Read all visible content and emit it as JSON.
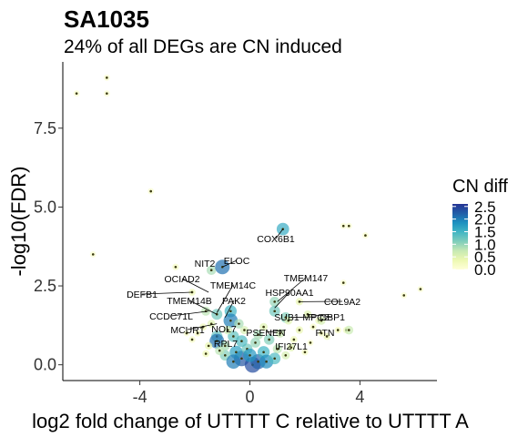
{
  "chart_data": {
    "type": "scatter",
    "title": "SA1035",
    "subtitle": "24% of all DEGs are CN induced",
    "xlabel": "log2 fold change of UTTTT C relative to UTTTT A",
    "ylabel": "-log10(FDR)",
    "xlim": [
      -6.8,
      6.8
    ],
    "ylim": [
      -0.5,
      9.6
    ],
    "xticks": [
      -4,
      0,
      4
    ],
    "xtick_labels": [
      "-4",
      "0",
      "4"
    ],
    "yticks": [
      0,
      2.5,
      5,
      7.5
    ],
    "ytick_labels": [
      "0.0",
      "2.5",
      "5.0",
      "7.5"
    ],
    "grid": false,
    "legend": {
      "title": "CN diff",
      "placement": "right",
      "range": [
        0,
        2.6
      ],
      "ticks": [
        0,
        0.5,
        1,
        1.5,
        2,
        2.5
      ],
      "tick_labels": [
        "0.0",
        "0.5",
        "1.0",
        "1.5",
        "2.0",
        "2.5"
      ],
      "colors": [
        "#ffffd9",
        "#edf8b1",
        "#c7e9b4",
        "#7fcdbb",
        "#41b6c4",
        "#1d91c0",
        "#225ea8",
        "#253494"
      ]
    },
    "points": [
      {
        "x": -6.3,
        "y": 8.6,
        "cn": 0.1
      },
      {
        "x": -5.2,
        "y": 9.1,
        "cn": 0.1
      },
      {
        "x": -5.2,
        "y": 8.6,
        "cn": 0.1
      },
      {
        "x": -3.6,
        "y": 5.5,
        "cn": 0.1
      },
      {
        "x": -5.7,
        "y": 3.5,
        "cn": 0.1
      },
      {
        "x": 3.4,
        "y": 4.4,
        "cn": 0.1
      },
      {
        "x": 3.6,
        "y": 4.4,
        "cn": 0.1
      },
      {
        "x": 4.2,
        "y": 4.1,
        "cn": 0.1
      },
      {
        "x": 3.4,
        "y": 2.6,
        "cn": 0.1
      },
      {
        "x": 5.6,
        "y": 2.2,
        "cn": 0.1
      },
      {
        "x": 6.2,
        "y": 2.4,
        "cn": 0.1
      },
      {
        "x": 1.2,
        "y": 4.3,
        "cn": 1.6
      },
      {
        "x": -1.4,
        "y": 3.0,
        "cn": 0.9
      },
      {
        "x": -1.0,
        "y": 3.1,
        "cn": 2.1
      },
      {
        "x": -2.7,
        "y": 3.1,
        "cn": 0.2
      },
      {
        "x": -2.1,
        "y": 2.3,
        "cn": 0.3
      },
      {
        "x": -1.6,
        "y": 1.7,
        "cn": 0.8
      },
      {
        "x": -1.2,
        "y": 1.6,
        "cn": 1.2
      },
      {
        "x": -0.7,
        "y": 1.7,
        "cn": 1.5
      },
      {
        "x": -0.7,
        "y": 1.4,
        "cn": 2.0
      },
      {
        "x": -1.2,
        "y": 0.9,
        "cn": 1.3
      },
      {
        "x": -1.2,
        "y": 0.75,
        "cn": 2.1
      },
      {
        "x": -2.1,
        "y": 0.8,
        "cn": 0.2
      },
      {
        "x": -1.5,
        "y": 0.6,
        "cn": 0.4
      },
      {
        "x": -0.9,
        "y": 0.6,
        "cn": 0.9
      },
      {
        "x": 0.9,
        "y": 2.0,
        "cn": 1.0
      },
      {
        "x": 0.9,
        "y": 1.7,
        "cn": 1.2
      },
      {
        "x": 1.3,
        "y": 1.5,
        "cn": 1.1
      },
      {
        "x": 1.4,
        "y": 1.4,
        "cn": 0.5
      },
      {
        "x": 1.8,
        "y": 2.0,
        "cn": 0.4
      },
      {
        "x": 2.1,
        "y": 1.6,
        "cn": 0.5
      },
      {
        "x": 2.5,
        "y": 1.4,
        "cn": 0.3
      },
      {
        "x": 2.6,
        "y": 1.4,
        "cn": 0.6
      },
      {
        "x": 2.6,
        "y": 1.0,
        "cn": 0.2
      },
      {
        "x": 2.8,
        "y": 0.9,
        "cn": 0.3
      },
      {
        "x": 2.2,
        "y": 0.7,
        "cn": 0.1
      },
      {
        "x": 3.2,
        "y": 1.1,
        "cn": 0.2
      },
      {
        "x": 3.2,
        "y": 1.1,
        "cn": 0.1
      },
      {
        "x": 3.5,
        "y": 1.1,
        "cn": 0.2
      },
      {
        "x": 3.6,
        "y": 1.1,
        "cn": 0.7
      },
      {
        "x": -0.3,
        "y": 0.2,
        "cn": 2.3
      },
      {
        "x": 0.1,
        "y": 0.0,
        "cn": 2.4
      },
      {
        "x": 0.3,
        "y": 0.1,
        "cn": 2.2
      },
      {
        "x": -0.5,
        "y": 0.4,
        "cn": 1.7
      },
      {
        "x": 0.5,
        "y": 0.4,
        "cn": 1.5
      },
      {
        "x": -0.1,
        "y": 0.5,
        "cn": 1.2
      },
      {
        "x": 0.2,
        "y": 0.7,
        "cn": 1.0
      },
      {
        "x": -0.6,
        "y": 0.9,
        "cn": 1.3
      },
      {
        "x": 0.7,
        "y": 0.8,
        "cn": 1.1
      },
      {
        "x": 1.0,
        "y": 0.5,
        "cn": 0.8
      },
      {
        "x": -0.9,
        "y": 0.3,
        "cn": 1.1
      },
      {
        "x": 1.3,
        "y": 0.3,
        "cn": 0.6
      },
      {
        "x": -0.2,
        "y": 1.1,
        "cn": 0.6
      },
      {
        "x": 0.5,
        "y": 1.2,
        "cn": 0.5
      },
      {
        "x": -0.4,
        "y": 1.3,
        "cn": 0.9
      },
      {
        "x": 1.1,
        "y": 1.0,
        "cn": 0.7
      },
      {
        "x": 1.6,
        "y": 0.8,
        "cn": 0.3
      },
      {
        "x": 1.8,
        "y": 1.1,
        "cn": 0.4
      },
      {
        "x": -1.7,
        "y": 1.2,
        "cn": 0.3
      },
      {
        "x": -1.9,
        "y": 1.0,
        "cn": 0.2
      },
      {
        "x": -1.4,
        "y": 1.3,
        "cn": 0.5
      },
      {
        "x": -0.8,
        "y": 1.1,
        "cn": 0.7
      },
      {
        "x": 0.0,
        "y": 0.3,
        "cn": 1.8
      },
      {
        "x": 0.6,
        "y": 0.1,
        "cn": 1.9
      },
      {
        "x": -0.6,
        "y": 0.1,
        "cn": 2.0
      },
      {
        "x": 0.9,
        "y": 0.2,
        "cn": 1.4
      },
      {
        "x": -1.1,
        "y": 0.45,
        "cn": 0.8
      },
      {
        "x": 1.5,
        "y": 0.55,
        "cn": 0.5
      },
      {
        "x": 2.0,
        "y": 0.4,
        "cn": 0.2
      },
      {
        "x": -1.6,
        "y": 0.35,
        "cn": 0.3
      },
      {
        "x": 0.3,
        "y": 0.95,
        "cn": 0.9
      },
      {
        "x": -0.3,
        "y": 0.75,
        "cn": 1.4
      },
      {
        "x": 2.3,
        "y": 1.2,
        "cn": 0.2
      },
      {
        "x": -2.3,
        "y": 1.0,
        "cn": 0.1
      }
    ],
    "annotations": [
      {
        "label": "COX6B1",
        "x": 1.2,
        "y": 4.3
      },
      {
        "label": "NIT2",
        "x": -1.4,
        "y": 3.0
      },
      {
        "label": "ELOC",
        "x": -1.0,
        "y": 3.1
      },
      {
        "label": "OCIAD2",
        "x": -1.5,
        "y": 2.3
      },
      {
        "label": "TMEM147",
        "x": 1.0,
        "y": 2.0
      },
      {
        "label": "TMEM14C",
        "x": -1.2,
        "y": 1.65
      },
      {
        "label": "HSP90AA1",
        "x": 0.9,
        "y": 1.8
      },
      {
        "label": "DEFB1",
        "x": -2.1,
        "y": 2.3
      },
      {
        "label": "COL9A2",
        "x": 1.8,
        "y": 2.0
      },
      {
        "label": "TMEM14B",
        "x": -1.2,
        "y": 1.6
      },
      {
        "label": "PAK2",
        "x": -0.9,
        "y": 1.5
      },
      {
        "label": "CCDC71L",
        "x": -1.5,
        "y": 1.7
      },
      {
        "label": "SUB1",
        "x": 1.4,
        "y": 1.4
      },
      {
        "label": "MPC2",
        "x": 1.5,
        "y": 1.5
      },
      {
        "label": "GBP1",
        "x": 2.1,
        "y": 1.6
      },
      {
        "label": "MCUR1",
        "x": -1.2,
        "y": 1.3
      },
      {
        "label": "NOL7",
        "x": -0.7,
        "y": 1.4
      },
      {
        "label": "PSENEN",
        "x": 1.3,
        "y": 1.1
      },
      {
        "label": "PTN",
        "x": 2.5,
        "y": 1.2
      },
      {
        "label": "RPL7",
        "x": -1.2,
        "y": 0.8
      },
      {
        "label": "IFI27L1",
        "x": 1.5,
        "y": 0.9
      }
    ]
  }
}
